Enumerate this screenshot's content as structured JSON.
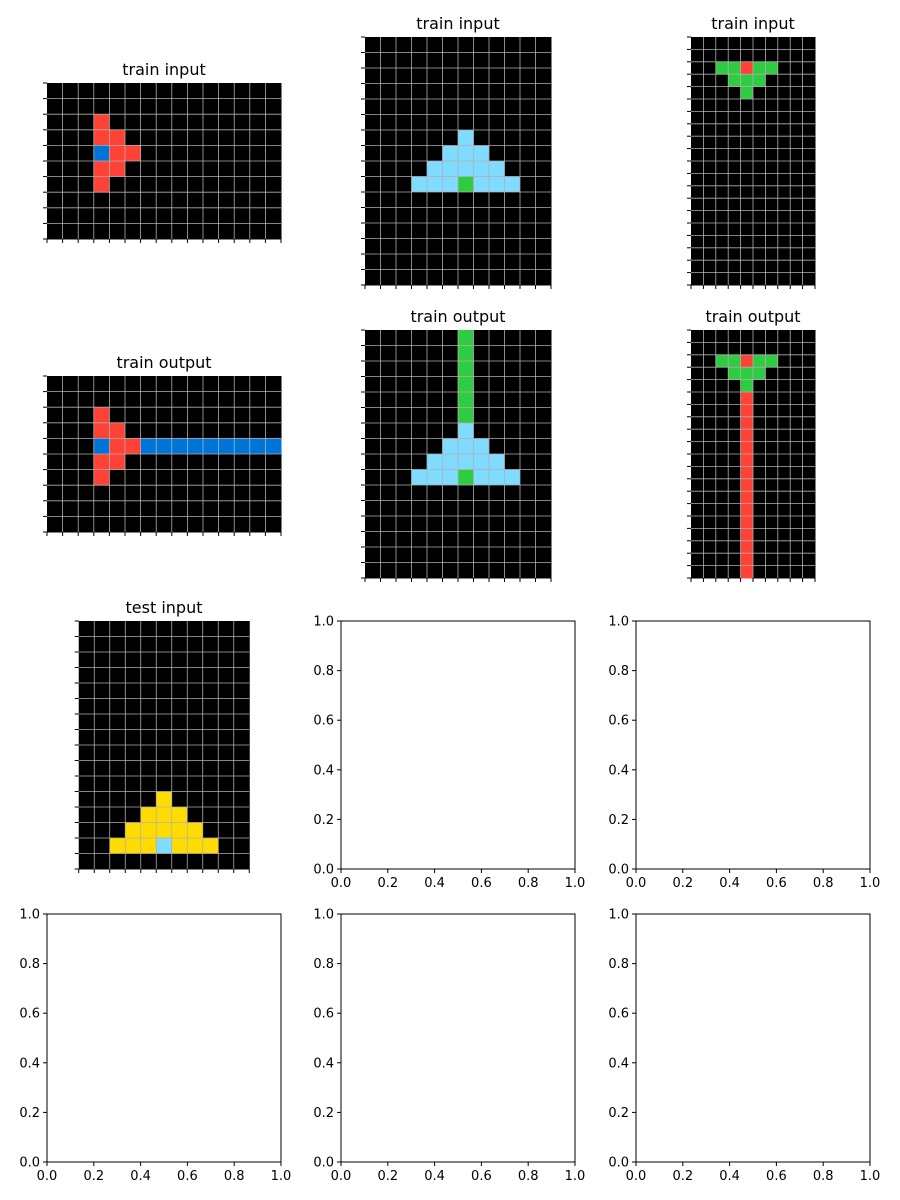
{
  "colors": {
    "0": "#000000",
    "1": "#0074D9",
    "2": "#FF4136",
    "3": "#2ECC40",
    "4": "#FFDC00",
    "8": "#7FDBFF",
    "grid": "#b0b0b0",
    "frame": "#000000"
  },
  "empty_axis_ticks": [
    "0.0",
    "0.2",
    "0.4",
    "0.6",
    "0.8",
    "1.0"
  ],
  "panels": [
    {
      "title": "train input",
      "grid": [
        "000000000000000",
        "000000000000000",
        "000200000000000",
        "000220000000000",
        "000122000000000",
        "000220000000000",
        "000200000000000",
        "000000000000000",
        "000000000000000",
        "000000000000000"
      ]
    },
    {
      "title": "train input",
      "grid": [
        "000000000000",
        "000000000000",
        "000000000000",
        "000000000000",
        "000000000000",
        "000000000000",
        "000000800000",
        "000008880000",
        "000088888000",
        "000888388800",
        "000000000000",
        "000000000000",
        "000000000000",
        "000000000000",
        "000000000000",
        "000000000000"
      ]
    },
    {
      "title": "train input",
      "grid": [
        "0000000000",
        "0000000000",
        "0033233000",
        "0003330000",
        "0000300000",
        "0000000000",
        "0000000000",
        "0000000000",
        "0000000000",
        "0000000000",
        "0000000000",
        "0000000000",
        "0000000000",
        "0000000000",
        "0000000000",
        "0000000000",
        "0000000000",
        "0000000000",
        "0000000000",
        "0000000000"
      ]
    },
    {
      "title": "train output",
      "grid": [
        "000000000000000",
        "000000000000000",
        "000200000000000",
        "000220000000000",
        "000122111111111",
        "000220000000000",
        "000200000000000",
        "000000000000000",
        "000000000000000",
        "000000000000000"
      ]
    },
    {
      "title": "train output",
      "grid": [
        "000000300000",
        "000000300000",
        "000000300000",
        "000000300000",
        "000000300000",
        "000000300000",
        "000000800000",
        "000008880000",
        "000088888000",
        "000888388800",
        "000000000000",
        "000000000000",
        "000000000000",
        "000000000000",
        "000000000000",
        "000000000000"
      ]
    },
    {
      "title": "train output",
      "grid": [
        "0000000000",
        "0000000000",
        "0033233000",
        "0003330000",
        "0000300000",
        "0000200000",
        "0000200000",
        "0000200000",
        "0000200000",
        "0000200000",
        "0000200000",
        "0000200000",
        "0000200000",
        "0000200000",
        "0000200000",
        "0000200000",
        "0000200000",
        "0000200000",
        "0000200000",
        "0000200000"
      ]
    },
    {
      "title": "test input",
      "grid": [
        "00000000000",
        "00000000000",
        "00000000000",
        "00000000000",
        "00000000000",
        "00000000000",
        "00000000000",
        "00000000000",
        "00000000000",
        "00000000000",
        "00000000000",
        "00000400000",
        "00004440000",
        "00044444000",
        "00444844400",
        "00000000000"
      ]
    },
    {
      "title": "",
      "grid": null
    },
    {
      "title": "",
      "grid": null
    },
    {
      "title": "",
      "grid": null
    },
    {
      "title": "",
      "grid": null
    },
    {
      "title": "",
      "grid": null
    }
  ]
}
